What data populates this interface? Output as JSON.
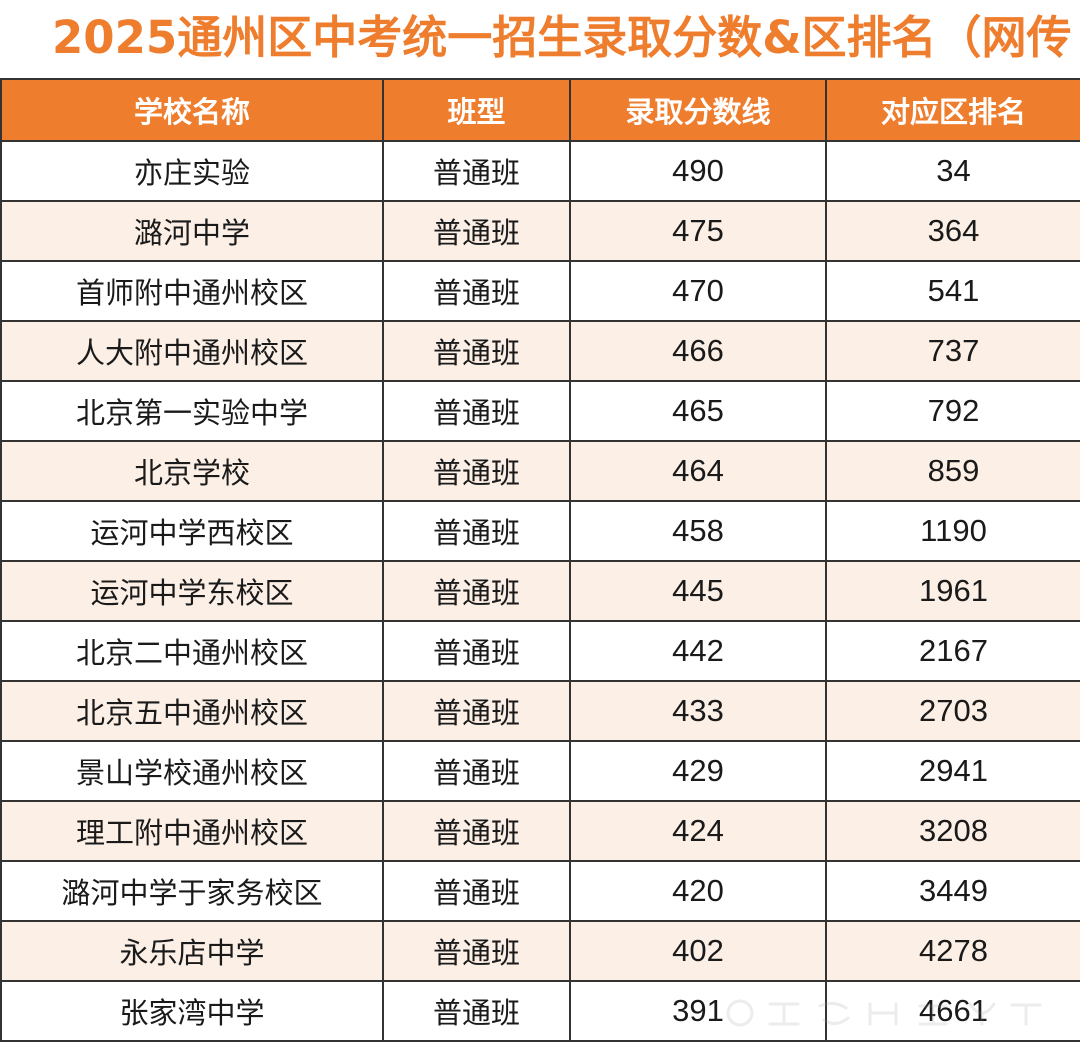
{
  "title": "2025通州区中考统一招生录取分数&区排名（网传",
  "table": {
    "headers": [
      "学校名称",
      "班型",
      "录取分数线",
      "对应区排名"
    ],
    "rows": [
      {
        "school": "亦庄实验",
        "class_type": "普通班",
        "score": "490",
        "rank": "34"
      },
      {
        "school": "潞河中学",
        "class_type": "普通班",
        "score": "475",
        "rank": "364"
      },
      {
        "school": "首师附中通州校区",
        "class_type": "普通班",
        "score": "470",
        "rank": "541"
      },
      {
        "school": "人大附中通州校区",
        "class_type": "普通班",
        "score": "466",
        "rank": "737"
      },
      {
        "school": "北京第一实验中学",
        "class_type": "普通班",
        "score": "465",
        "rank": "792"
      },
      {
        "school": "北京学校",
        "class_type": "普通班",
        "score": "464",
        "rank": "859"
      },
      {
        "school": "运河中学西校区",
        "class_type": "普通班",
        "score": "458",
        "rank": "1190"
      },
      {
        "school": "运河中学东校区",
        "class_type": "普通班",
        "score": "445",
        "rank": "1961"
      },
      {
        "school": "北京二中通州校区",
        "class_type": "普通班",
        "score": "442",
        "rank": "2167"
      },
      {
        "school": "北京五中通州校区",
        "class_type": "普通班",
        "score": "433",
        "rank": "2703"
      },
      {
        "school": "景山学校通州校区",
        "class_type": "普通班",
        "score": "429",
        "rank": "2941"
      },
      {
        "school": "理工附中通州校区",
        "class_type": "普通班",
        "score": "424",
        "rank": "3208"
      },
      {
        "school": "潞河中学于家务校区",
        "class_type": "普通班",
        "score": "420",
        "rank": "3449"
      },
      {
        "school": "永乐店中学",
        "class_type": "普通班",
        "score": "402",
        "rank": "4278"
      },
      {
        "school": "张家湾中学",
        "class_type": "普通班",
        "score": "391",
        "rank": "4661"
      }
    ]
  },
  "colors": {
    "accent": "#ef7d2e",
    "alt_row": "#fcefe6",
    "border": "#333333"
  }
}
